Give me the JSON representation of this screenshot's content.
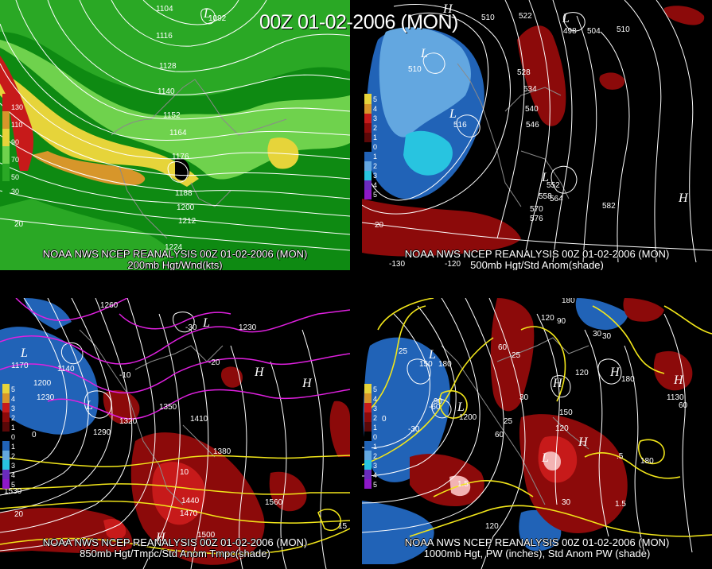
{
  "title": "00Z 01-02-2006 (MON)",
  "panels": [
    {
      "id": "p1",
      "line1": "NOAA NWS NCEP REANALYSIS 00Z 01-02-2006 (MON)",
      "line2": "200mb Hgt/Wnd(kts)",
      "scale_labels": [
        "130",
        "110",
        "90",
        "70",
        "50",
        "30"
      ],
      "contour_labels": [
        "1104",
        "1092",
        "1116",
        "1128",
        "1140",
        "1152",
        "1164",
        "1176",
        "1188",
        "1200",
        "1212",
        "1224",
        "20"
      ],
      "h_l": [
        "L"
      ]
    },
    {
      "id": "p2",
      "line1": "NOAA NWS NCEP REANALYSIS 00Z 01-02-2006 (MON)",
      "line2": "500mb Hgt/Std Anom(shade)",
      "scale_labels": [
        "5",
        "4",
        "3",
        "2",
        "1",
        "0",
        "1",
        "2",
        "3",
        "4",
        "5"
      ],
      "contour_labels": [
        "510",
        "522",
        "504",
        "498",
        "510",
        "528",
        "534",
        "540",
        "546",
        "516",
        "552",
        "558",
        "564",
        "570",
        "576",
        "582",
        "20",
        "-130",
        "-120"
      ],
      "h_l": [
        "H",
        "L",
        "L",
        "L",
        "L",
        "H"
      ]
    },
    {
      "id": "p3",
      "line1": "NOAA NWS NCEP REANALYSIS 00Z 01-02-2006 (MON)",
      "line2": "850mb Hgt/Tmpc/Std Anom Tmpc(shade)",
      "scale_labels": [
        "5",
        "4",
        "3",
        "2",
        "1",
        "0",
        "1",
        "2",
        "3",
        "4",
        "5"
      ],
      "contour_labels": [
        "1260",
        "1170",
        "1140",
        "1200",
        "1230",
        "1350",
        "1320",
        "1290",
        "1380",
        "1410",
        "1440",
        "1470",
        "1500",
        "1530",
        "1560",
        "1230",
        "-30",
        "-20",
        "-10",
        "0",
        "10",
        "15",
        "20"
      ],
      "h_l": [
        "L",
        "L",
        "L",
        "H",
        "H",
        "H"
      ]
    },
    {
      "id": "p4",
      "line1": "NOAA NWS NCEP REANALYSIS 00Z 01-02-2006 (MON)",
      "line2": "1000mb Hgt, PW (inches), Std Anom PW (shade)",
      "scale_labels": [
        "5",
        "4",
        "3",
        "2",
        "1",
        "0",
        "1",
        "2",
        "3",
        "4",
        "5"
      ],
      "contour_labels": [
        "180",
        "150",
        "120",
        "90",
        "60",
        "30",
        "0",
        "-30",
        "-60",
        "25",
        "1.5",
        ".5",
        "120",
        "30",
        "60",
        "180",
        "1.5"
      ],
      "h_l": [
        "L",
        "L",
        "H",
        "H",
        "H",
        "L",
        "H"
      ]
    }
  ],
  "colors": {
    "background": "#000000",
    "contour": "#ffffff",
    "green_light": "#7ed957",
    "green_mid": "#3fbf2a",
    "green_dark": "#0e8a12",
    "yellow": "#e6d43a",
    "orange": "#d7962a",
    "dark_red": "#8c0a0a",
    "red": "#c71a1a",
    "light_blue": "#63a7e0",
    "blue": "#2163b7",
    "cyan": "#28c4e0",
    "magenta": "#e020e0",
    "pw_yellow": "#f2e61a"
  }
}
